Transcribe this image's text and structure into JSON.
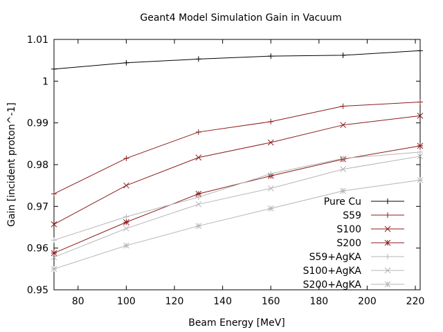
{
  "chart_data": {
    "type": "line",
    "title": "Geant4 Model Simulation Gain in Vacuum",
    "xlabel": "Beam Energy [MeV]",
    "ylabel": "Gain [incident proton^-1]",
    "xlim": [
      70,
      222
    ],
    "ylim": [
      0.95,
      1.01
    ],
    "xticks": [
      80,
      100,
      120,
      140,
      160,
      180,
      200,
      220
    ],
    "yticks": [
      0.95,
      0.96,
      0.97,
      0.98,
      0.99,
      1,
      1.01
    ],
    "x": [
      70,
      100,
      130,
      160,
      190,
      222
    ],
    "legend_position": "bottom-right",
    "grid": false,
    "series": [
      {
        "name": "Pure Cu",
        "color": "#000000",
        "marker": "plus",
        "values": [
          1.0029,
          1.0044,
          1.0053,
          1.006,
          1.0062,
          1.0073
        ]
      },
      {
        "name": "S59",
        "color": "#8b1a1a",
        "marker": "plus",
        "values": [
          0.973,
          0.9815,
          0.9878,
          0.9903,
          0.994,
          0.995
        ]
      },
      {
        "name": "S100",
        "color": "#8b1a1a",
        "marker": "cross",
        "values": [
          0.9657,
          0.975,
          0.9817,
          0.9853,
          0.9895,
          0.9917
        ]
      },
      {
        "name": "S200",
        "color": "#8b1a1a",
        "marker": "star",
        "values": [
          0.9588,
          0.9662,
          0.973,
          0.9773,
          0.9813,
          0.9845
        ]
      },
      {
        "name": "S59+AgKA",
        "color": "#b4b4b4",
        "marker": "plus",
        "values": [
          0.9619,
          0.9675,
          0.9722,
          0.9778,
          0.9815,
          0.983
        ]
      },
      {
        "name": "S100+AgKA",
        "color": "#b4b4b4",
        "marker": "cross",
        "values": [
          0.9578,
          0.9647,
          0.9705,
          0.9743,
          0.9789,
          0.982
        ]
      },
      {
        "name": "S200+AgKA",
        "color": "#b4b4b4",
        "marker": "star",
        "values": [
          0.955,
          0.9606,
          0.9653,
          0.9695,
          0.9737,
          0.9763
        ]
      }
    ]
  }
}
